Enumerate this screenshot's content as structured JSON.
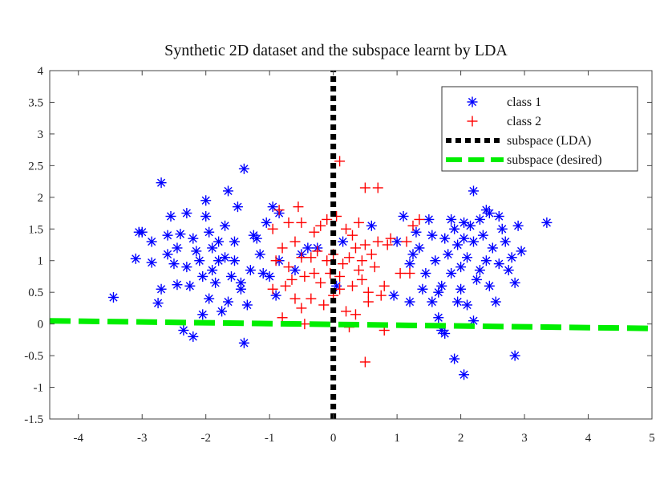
{
  "chart_data": {
    "type": "scatter",
    "title": "Synthetic 2D dataset and the subspace learnt by LDA",
    "xlabel": "",
    "ylabel": "",
    "xlim": [
      -4.45,
      5
    ],
    "ylim": [
      -1.5,
      4
    ],
    "xticks": [
      "-4",
      "-3",
      "-2",
      "-1",
      "0",
      "1",
      "2",
      "3",
      "4",
      "5"
    ],
    "yticks": [
      "-1.5",
      "-1",
      "-0.5",
      "0",
      "0.5",
      "1",
      "1.5",
      "2",
      "2.5",
      "3",
      "3.5",
      "4"
    ],
    "grid": false,
    "legend_position": "top-right",
    "colors": {
      "class1": "#0000ff",
      "class2": "#ff0000",
      "lda": "#000000",
      "desired": "#00ee00"
    },
    "series": [
      {
        "name": "class 1",
        "marker": "asterisk",
        "points": [
          [
            -3.45,
            0.42
          ],
          [
            -3.05,
            1.45
          ],
          [
            -3.0,
            1.45
          ],
          [
            -3.1,
            1.03
          ],
          [
            -2.85,
            0.97
          ],
          [
            -2.85,
            1.3
          ],
          [
            -2.7,
            2.23
          ],
          [
            -2.7,
            0.55
          ],
          [
            -2.75,
            0.33
          ],
          [
            -2.6,
            1.4
          ],
          [
            -2.55,
            1.7
          ],
          [
            -2.5,
            0.95
          ],
          [
            -2.45,
            0.62
          ],
          [
            -2.4,
            1.42
          ],
          [
            -2.35,
            -0.1
          ],
          [
            -2.3,
            1.75
          ],
          [
            -2.25,
            0.6
          ],
          [
            -2.2,
            -0.2
          ],
          [
            -2.2,
            1.35
          ],
          [
            -2.1,
            1.0
          ],
          [
            -2.05,
            0.75
          ],
          [
            -2.0,
            1.95
          ],
          [
            -2.0,
            1.7
          ],
          [
            -1.95,
            1.45
          ],
          [
            -1.9,
            1.2
          ],
          [
            -1.9,
            0.85
          ],
          [
            -1.85,
            0.65
          ],
          [
            -1.8,
            1.0
          ],
          [
            -1.75,
            0.2
          ],
          [
            -1.7,
            1.55
          ],
          [
            -1.65,
            2.1
          ],
          [
            -1.6,
            0.75
          ],
          [
            -1.55,
            1.3
          ],
          [
            -1.5,
            1.85
          ],
          [
            -1.45,
            0.55
          ],
          [
            -1.4,
            2.45
          ],
          [
            -1.35,
            0.3
          ],
          [
            -1.4,
            -0.3
          ],
          [
            -1.3,
            0.85
          ],
          [
            -1.25,
            1.4
          ],
          [
            -1.15,
            1.1
          ],
          [
            -1.1,
            0.8
          ],
          [
            -1.0,
            0.75
          ],
          [
            -0.95,
            1.85
          ],
          [
            -0.85,
            1.75
          ],
          [
            -0.9,
            0.45
          ],
          [
            -1.05,
            1.6
          ],
          [
            -2.15,
            1.15
          ],
          [
            -2.3,
            0.9
          ],
          [
            -1.95,
            0.4
          ],
          [
            -1.7,
            1.05
          ],
          [
            -2.45,
            1.2
          ],
          [
            -2.6,
            1.1
          ],
          [
            -1.2,
            1.35
          ],
          [
            -1.55,
            1.0
          ],
          [
            -1.8,
            1.3
          ],
          [
            -0.5,
            1.1
          ],
          [
            -0.6,
            0.85
          ],
          [
            -0.25,
            1.2
          ],
          [
            -0.85,
            1.0
          ],
          [
            -1.65,
            0.35
          ],
          [
            -2.05,
            0.15
          ],
          [
            -1.45,
            0.65
          ],
          [
            1.1,
            1.7
          ],
          [
            1.0,
            1.3
          ],
          [
            1.5,
            1.65
          ],
          [
            1.55,
            0.35
          ],
          [
            1.2,
            0.35
          ],
          [
            1.65,
            0.1
          ],
          [
            1.75,
            -0.15
          ],
          [
            1.7,
            -0.1
          ],
          [
            1.9,
            -0.55
          ],
          [
            2.05,
            -0.8
          ],
          [
            2.2,
            0.05
          ],
          [
            2.85,
            -0.5
          ],
          [
            3.35,
            1.6
          ],
          [
            2.2,
            2.1
          ],
          [
            2.4,
            1.8
          ],
          [
            2.45,
            1.75
          ],
          [
            1.85,
            1.65
          ],
          [
            2.05,
            1.6
          ],
          [
            2.15,
            1.55
          ],
          [
            2.3,
            1.65
          ],
          [
            2.6,
            1.7
          ],
          [
            2.9,
            1.55
          ],
          [
            2.95,
            1.15
          ],
          [
            2.85,
            0.65
          ],
          [
            2.7,
            1.3
          ],
          [
            2.8,
            1.05
          ],
          [
            2.6,
            0.95
          ],
          [
            2.5,
            1.2
          ],
          [
            2.4,
            1.0
          ],
          [
            2.3,
            0.85
          ],
          [
            2.2,
            1.3
          ],
          [
            2.1,
            1.05
          ],
          [
            2.0,
            0.9
          ],
          [
            1.95,
            1.25
          ],
          [
            1.9,
            1.5
          ],
          [
            1.85,
            0.8
          ],
          [
            1.8,
            1.1
          ],
          [
            1.75,
            1.35
          ],
          [
            1.7,
            0.6
          ],
          [
            1.6,
            1.0
          ],
          [
            1.55,
            1.4
          ],
          [
            1.45,
            0.8
          ],
          [
            1.4,
            0.55
          ],
          [
            1.35,
            1.2
          ],
          [
            1.3,
            1.45
          ],
          [
            1.2,
            0.95
          ],
          [
            1.25,
            1.1
          ],
          [
            2.45,
            0.6
          ],
          [
            2.55,
            0.35
          ],
          [
            2.0,
            0.55
          ],
          [
            2.25,
            0.7
          ],
          [
            1.95,
            0.35
          ],
          [
            2.1,
            0.3
          ],
          [
            2.35,
            1.4
          ],
          [
            2.65,
            1.5
          ],
          [
            2.05,
            1.35
          ],
          [
            1.65,
            0.5
          ],
          [
            2.75,
            0.85
          ],
          [
            0.15,
            1.3
          ],
          [
            0.05,
            0.6
          ],
          [
            0.6,
            1.55
          ],
          [
            0.95,
            0.45
          ],
          [
            -0.4,
            1.2
          ]
        ]
      },
      {
        "name": "class 2",
        "marker": "plus",
        "points": [
          [
            0.1,
            2.57
          ],
          [
            0.5,
            2.15
          ],
          [
            0.7,
            2.15
          ],
          [
            -0.55,
            1.85
          ],
          [
            -0.85,
            1.8
          ],
          [
            -0.7,
            1.6
          ],
          [
            -0.5,
            1.6
          ],
          [
            -0.3,
            1.45
          ],
          [
            -0.2,
            1.55
          ],
          [
            -0.1,
            1.65
          ],
          [
            0.05,
            1.7
          ],
          [
            0.2,
            1.5
          ],
          [
            0.3,
            1.4
          ],
          [
            0.4,
            1.6
          ],
          [
            0.5,
            1.25
          ],
          [
            0.6,
            1.1
          ],
          [
            0.7,
            1.3
          ],
          [
            0.85,
            1.25
          ],
          [
            0.9,
            1.35
          ],
          [
            -0.9,
            1.0
          ],
          [
            -0.8,
            1.2
          ],
          [
            -0.7,
            0.9
          ],
          [
            -0.6,
            1.3
          ],
          [
            -0.5,
            1.05
          ],
          [
            -0.45,
            0.75
          ],
          [
            -0.35,
            1.05
          ],
          [
            -0.3,
            0.8
          ],
          [
            -0.2,
            0.65
          ],
          [
            -0.1,
            1.0
          ],
          [
            0.0,
            1.1
          ],
          [
            0.1,
            0.75
          ],
          [
            0.15,
            0.95
          ],
          [
            0.25,
            1.05
          ],
          [
            0.3,
            0.6
          ],
          [
            0.4,
            0.85
          ],
          [
            0.45,
            0.7
          ],
          [
            0.55,
            0.5
          ],
          [
            0.65,
            0.9
          ],
          [
            0.8,
            0.6
          ],
          [
            -0.95,
            0.55
          ],
          [
            -0.75,
            0.6
          ],
          [
            -0.6,
            0.4
          ],
          [
            -0.5,
            0.25
          ],
          [
            -0.35,
            0.4
          ],
          [
            -0.15,
            0.3
          ],
          [
            0.0,
            0.45
          ],
          [
            0.2,
            0.2
          ],
          [
            0.35,
            0.15
          ],
          [
            0.55,
            0.35
          ],
          [
            -0.8,
            0.1
          ],
          [
            -0.45,
            0.0
          ],
          [
            0.25,
            -0.05
          ],
          [
            0.8,
            -0.1
          ],
          [
            0.5,
            -0.6
          ],
          [
            1.05,
            0.8
          ],
          [
            1.2,
            0.8
          ],
          [
            1.25,
            1.55
          ],
          [
            1.35,
            1.65
          ],
          [
            1.15,
            1.3
          ],
          [
            -0.95,
            1.5
          ],
          [
            -0.65,
            0.7
          ],
          [
            0.1,
            0.55
          ],
          [
            0.35,
            1.2
          ],
          [
            -0.25,
            1.15
          ],
          [
            0.45,
            1.0
          ],
          [
            -0.05,
            0.8
          ],
          [
            0.75,
            0.45
          ]
        ]
      },
      {
        "name": "subspace (LDA)",
        "line": "dotted",
        "points": [
          [
            0,
            -1.5
          ],
          [
            0,
            4
          ]
        ]
      },
      {
        "name": "subspace (desired)",
        "line": "dashed",
        "points": [
          [
            -4.45,
            0.05
          ],
          [
            5,
            -0.07
          ]
        ]
      }
    ]
  }
}
